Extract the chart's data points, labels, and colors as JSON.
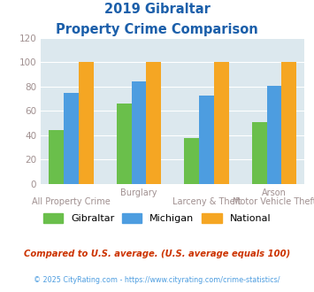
{
  "title_line1": "2019 Gibraltar",
  "title_line2": "Property Crime Comparison",
  "cat_top_labels": [
    "",
    "Burglary",
    "",
    "Arson"
  ],
  "cat_bot_labels": [
    "All Property Crime",
    "",
    "Larceny & Theft",
    "Motor Vehicle Theft"
  ],
  "series": {
    "Gibraltar": [
      44,
      66,
      38,
      51
    ],
    "Michigan": [
      75,
      84,
      73,
      81
    ],
    "National": [
      100,
      100,
      100,
      100
    ]
  },
  "series_names": [
    "Gibraltar",
    "Michigan",
    "National"
  ],
  "colors": {
    "Gibraltar": "#6abf4b",
    "Michigan": "#4d9de0",
    "National": "#f5a623"
  },
  "ylim": [
    0,
    120
  ],
  "yticks": [
    0,
    20,
    40,
    60,
    80,
    100,
    120
  ],
  "title_color": "#1b5faa",
  "tick_color": "#a09090",
  "bg_color": "#dce8ee",
  "footnote1": "Compared to U.S. average. (U.S. average equals 100)",
  "footnote2": "© 2025 CityRating.com - https://www.cityrating.com/crime-statistics/",
  "footnote1_color": "#cc3300",
  "footnote2_color": "#4d9de0"
}
